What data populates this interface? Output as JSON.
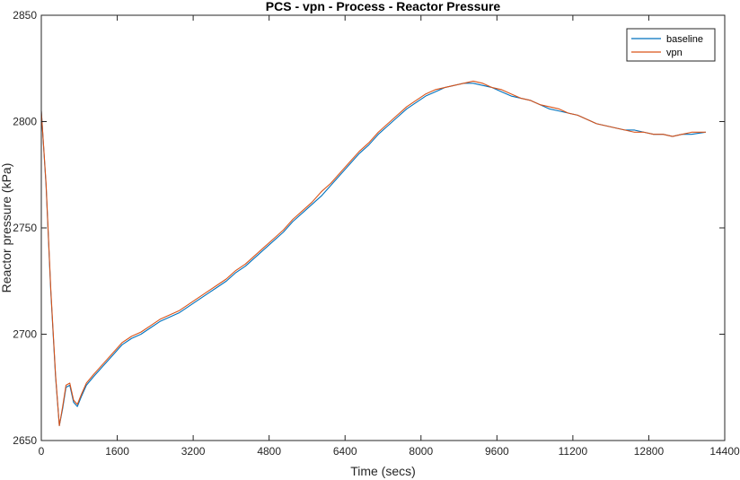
{
  "chart_data": {
    "type": "line",
    "title": "PCS - vpn - Process - Reactor Pressure",
    "xlabel": "Time (secs)",
    "ylabel": "Reactor pressure (kPa)",
    "xlim": [
      0,
      14400
    ],
    "ylim": [
      2650,
      2850
    ],
    "xticks": [
      0,
      1600,
      3200,
      4800,
      6400,
      8000,
      9600,
      11200,
      12800,
      14400
    ],
    "yticks": [
      2650,
      2700,
      2750,
      2800,
      2850
    ],
    "xtick_labels": [
      "0",
      "1600",
      "3200",
      "4800",
      "6400",
      "8000",
      "9600",
      "11200",
      "12800",
      "14400"
    ],
    "ytick_labels": [
      "2650",
      "2700",
      "2750",
      "2800",
      "2850"
    ],
    "grid": false,
    "legend_position": "top-right",
    "series": [
      {
        "name": "baseline",
        "color": "#0072BD",
        "x": [
          0,
          100,
          200,
          300,
          380,
          450,
          520,
          600,
          680,
          760,
          850,
          950,
          1100,
          1300,
          1500,
          1700,
          1900,
          2100,
          2300,
          2500,
          2700,
          2900,
          3100,
          3300,
          3500,
          3700,
          3900,
          4100,
          4300,
          4500,
          4700,
          4900,
          5100,
          5300,
          5500,
          5700,
          5900,
          6100,
          6300,
          6500,
          6700,
          6900,
          7100,
          7300,
          7500,
          7700,
          7900,
          8100,
          8300,
          8500,
          8700,
          8900,
          9100,
          9300,
          9500,
          9700,
          9900,
          10100,
          10300,
          10500,
          10700,
          10900,
          11100,
          11300,
          11500,
          11700,
          11900,
          12100,
          12300,
          12500,
          12700,
          12900,
          13100,
          13300,
          13500,
          13700,
          14000
        ],
        "values": [
          2805,
          2770,
          2720,
          2680,
          2657,
          2665,
          2675,
          2676,
          2668,
          2666,
          2671,
          2676,
          2680,
          2685,
          2690,
          2695,
          2698,
          2700,
          2703,
          2706,
          2708,
          2710,
          2713,
          2716,
          2719,
          2722,
          2725,
          2729,
          2732,
          2736,
          2740,
          2744,
          2748,
          2753,
          2757,
          2761,
          2765,
          2770,
          2775,
          2780,
          2785,
          2789,
          2794,
          2798,
          2802,
          2806,
          2809,
          2812,
          2814,
          2816,
          2817,
          2818,
          2818,
          2817,
          2816,
          2814,
          2812,
          2811,
          2810,
          2808,
          2806,
          2805,
          2804,
          2803,
          2801,
          2799,
          2798,
          2797,
          2796,
          2796,
          2795,
          2794,
          2794,
          2793,
          2794,
          2794,
          2795
        ]
      },
      {
        "name": "vpn",
        "color": "#D95319",
        "x": [
          0,
          100,
          200,
          300,
          380,
          450,
          520,
          600,
          680,
          760,
          850,
          950,
          1100,
          1300,
          1500,
          1700,
          1900,
          2100,
          2300,
          2500,
          2700,
          2900,
          3100,
          3300,
          3500,
          3700,
          3900,
          4100,
          4300,
          4500,
          4700,
          4900,
          5100,
          5300,
          5500,
          5700,
          5900,
          6100,
          6300,
          6500,
          6700,
          6900,
          7100,
          7300,
          7500,
          7700,
          7900,
          8100,
          8300,
          8500,
          8700,
          8900,
          9100,
          9300,
          9500,
          9700,
          9900,
          10100,
          10300,
          10500,
          10700,
          10900,
          11100,
          11300,
          11500,
          11700,
          11900,
          12100,
          12300,
          12500,
          12700,
          12900,
          13100,
          13300,
          13500,
          13700,
          14000
        ],
        "values": [
          2805,
          2771,
          2721,
          2681,
          2657,
          2666,
          2676,
          2677,
          2669,
          2667,
          2672,
          2677,
          2681,
          2686,
          2691,
          2696,
          2699,
          2701,
          2704,
          2707,
          2709,
          2711,
          2714,
          2717,
          2720,
          2723,
          2726,
          2730,
          2733,
          2737,
          2741,
          2745,
          2749,
          2754,
          2758,
          2762,
          2767,
          2771,
          2776,
          2781,
          2786,
          2790,
          2795,
          2799,
          2803,
          2807,
          2810,
          2813,
          2815,
          2816,
          2817,
          2818,
          2819,
          2818,
          2816,
          2815,
          2813,
          2811,
          2810,
          2808,
          2807,
          2806,
          2804,
          2803,
          2801,
          2799,
          2798,
          2797,
          2796,
          2795,
          2795,
          2794,
          2794,
          2793,
          2794,
          2795,
          2795
        ]
      }
    ]
  }
}
